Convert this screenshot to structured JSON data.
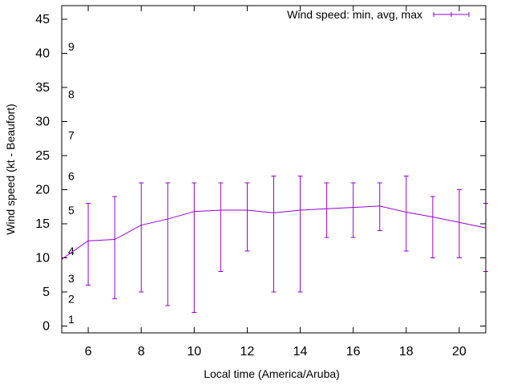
{
  "chart_data": {
    "type": "line",
    "title": "",
    "xlabel": "Local time (America/Aruba)",
    "ylabel": "Wind speed (kt - Beaufort)",
    "xlim": [
      5,
      21
    ],
    "ylim": [
      -1,
      47
    ],
    "x_ticks": [
      6,
      8,
      10,
      12,
      14,
      16,
      18,
      20
    ],
    "y_ticks": [
      0,
      5,
      10,
      15,
      20,
      25,
      30,
      35,
      40,
      45
    ],
    "beaufort_labels": [
      {
        "label": "1",
        "y": 1
      },
      {
        "label": "2",
        "y": 4
      },
      {
        "label": "3",
        "y": 7
      },
      {
        "label": "4",
        "y": 11
      },
      {
        "label": "5",
        "y": 17
      },
      {
        "label": "6",
        "y": 22
      },
      {
        "label": "7",
        "y": 28
      },
      {
        "label": "8",
        "y": 34
      },
      {
        "label": "9",
        "y": 41
      }
    ],
    "legend": {
      "label": "Wind speed: min, avg, max",
      "position": "top-right"
    },
    "series": [
      {
        "name": "Wind speed: min, avg, max",
        "color": "#9400d3",
        "x": [
          5,
          6,
          7,
          8,
          9,
          10,
          11,
          12,
          13,
          14,
          15,
          16,
          17,
          18,
          19,
          20,
          21
        ],
        "avg": [
          9.8,
          12.5,
          12.7,
          14.8,
          15.7,
          16.8,
          17.0,
          17.0,
          16.6,
          17.0,
          17.2,
          17.4,
          17.6,
          16.7,
          16.0,
          15.2,
          14.4
        ],
        "min": [
          null,
          6,
          4,
          5,
          3,
          2,
          8,
          11,
          5,
          5,
          13,
          13,
          14,
          11,
          10,
          10,
          8
        ],
        "max": [
          null,
          18,
          19,
          21,
          21,
          21,
          21,
          21,
          22,
          22,
          21,
          21,
          21,
          22,
          19,
          20,
          18
        ]
      }
    ]
  }
}
